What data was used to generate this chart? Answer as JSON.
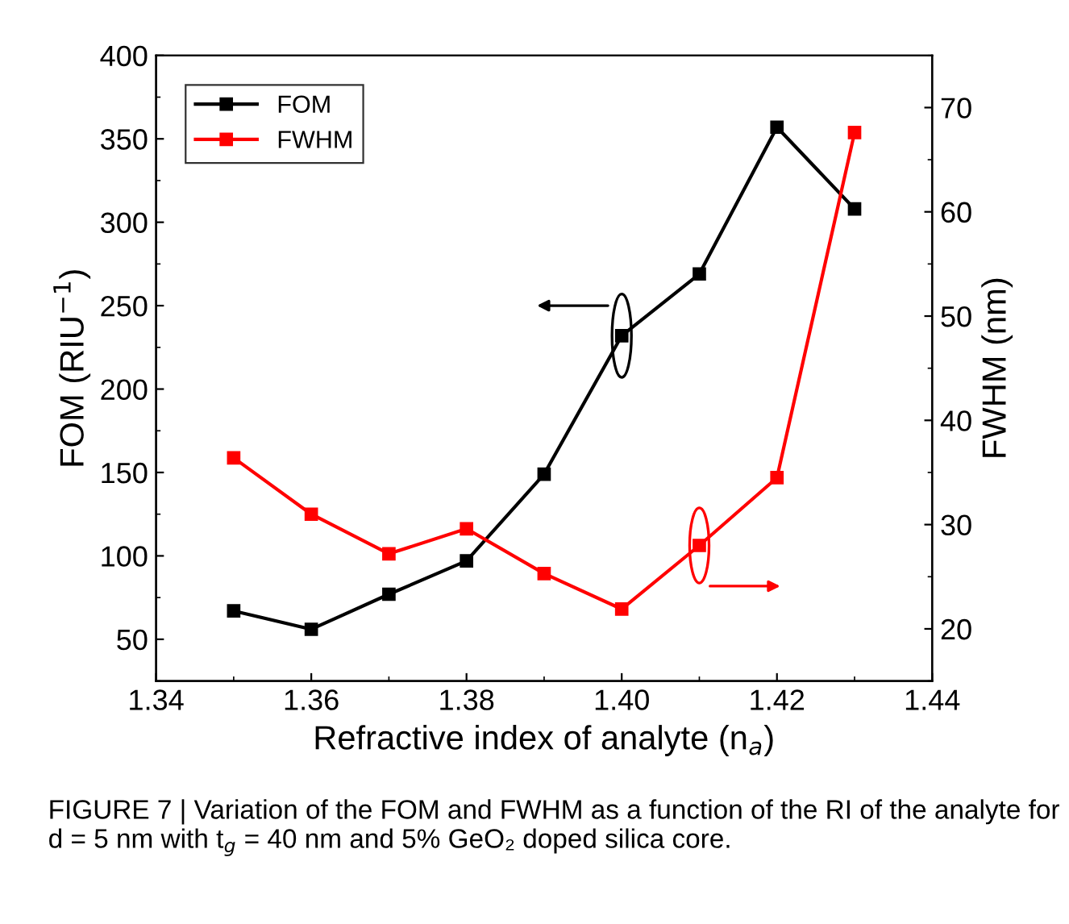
{
  "chart_data": {
    "type": "line",
    "xlabel": "Refractive index of analyte (n$_{a}$)",
    "ylabel": "FOM (RIU$^{−1}$)",
    "y2label": "FWHM (nm)",
    "x": [
      1.35,
      1.36,
      1.37,
      1.38,
      1.39,
      1.4,
      1.41,
      1.42,
      1.43
    ],
    "series": [
      {
        "name": "FOM",
        "color": "#000000",
        "values": [
          67,
          56,
          77,
          97,
          149,
          232,
          269,
          357,
          308
        ]
      },
      {
        "name": "FWHM",
        "color": "#ff0000",
        "axis": "y2",
        "values": [
          36.4,
          31.0,
          27.2,
          29.6,
          25.3,
          21.9,
          28.0,
          34.5,
          67.6
        ]
      }
    ],
    "xlim": [
      1.34,
      1.44
    ],
    "xticks": [
      {
        "value": 1.34,
        "label": "1.34"
      },
      {
        "value": 1.36,
        "label": "1.36"
      },
      {
        "value": 1.38,
        "label": "1.38"
      },
      {
        "value": 1.4,
        "label": "1.40"
      },
      {
        "value": 1.42,
        "label": "1.42"
      },
      {
        "value": 1.44,
        "label": "1.44"
      }
    ],
    "ylim": [
      25,
      400
    ],
    "yticks": [
      50,
      100,
      150,
      200,
      250,
      300,
      350,
      400
    ],
    "y2lim": [
      15,
      75
    ],
    "y2ticks": [
      20,
      30,
      40,
      50,
      60,
      70
    ],
    "marker": "square",
    "line_style": "solid",
    "legend": "top left",
    "grid": false,
    "annotations": [
      "FIGURE 7 | Variation of the FOM and FWHM as a function of the RI of the analyte for d = 5 nm with t$_{g}$ = 40 nm and 5% GeO₂ doped silica core."
    ]
  }
}
